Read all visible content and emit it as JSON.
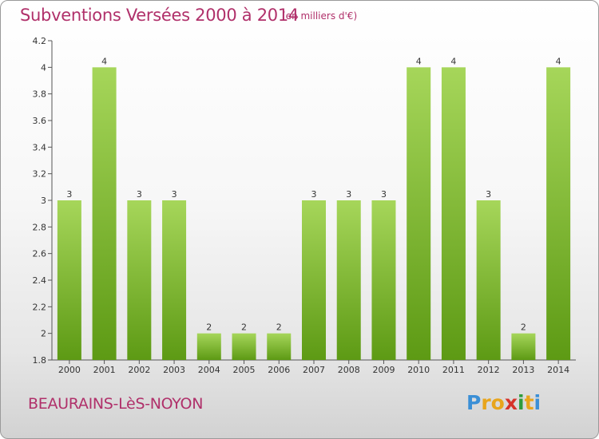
{
  "title": "Subventions Versées 2000 à 2014",
  "subtitle": "(en milliers d'€)",
  "commune": "BEAURAINS-LèS-NOYON",
  "logo": {
    "letters": [
      "P",
      "r",
      "o",
      "x",
      "i",
      "t",
      "i"
    ],
    "colors": [
      "#3a8fd6",
      "#e8a51c",
      "#e8a51c",
      "#d6332a",
      "#2f9c3c",
      "#e8a51c",
      "#3a8fd6"
    ]
  },
  "colors": {
    "bar_top": "#a6d65a",
    "bar_bottom": "#5d9a14",
    "text_accent": "#b0306a"
  },
  "chart_data": {
    "type": "bar",
    "categories": [
      "2000",
      "2001",
      "2002",
      "2003",
      "2004",
      "2005",
      "2006",
      "2007",
      "2008",
      "2009",
      "2010",
      "2011",
      "2012",
      "2013",
      "2014"
    ],
    "values": [
      3,
      4,
      3,
      3,
      2,
      2,
      2,
      3,
      3,
      3,
      4,
      4,
      3,
      2,
      4
    ],
    "value_labels": [
      "3",
      "4",
      "3",
      "3",
      "2",
      "2",
      "2",
      "3",
      "3",
      "3",
      "4",
      "4",
      "3",
      "2",
      "4"
    ],
    "yticks": [
      1.8,
      2,
      2.2,
      2.4,
      2.6,
      2.8,
      3,
      3.2,
      3.4,
      3.6,
      3.8,
      4,
      4.2
    ],
    "ytick_labels": [
      "1.8",
      "2",
      "2.2",
      "2.4",
      "2.6",
      "2.8",
      "3",
      "3.2",
      "3.4",
      "3.6",
      "3.8",
      "4",
      "4.2"
    ],
    "ylim": [
      1.8,
      4.2
    ],
    "grid": false
  }
}
